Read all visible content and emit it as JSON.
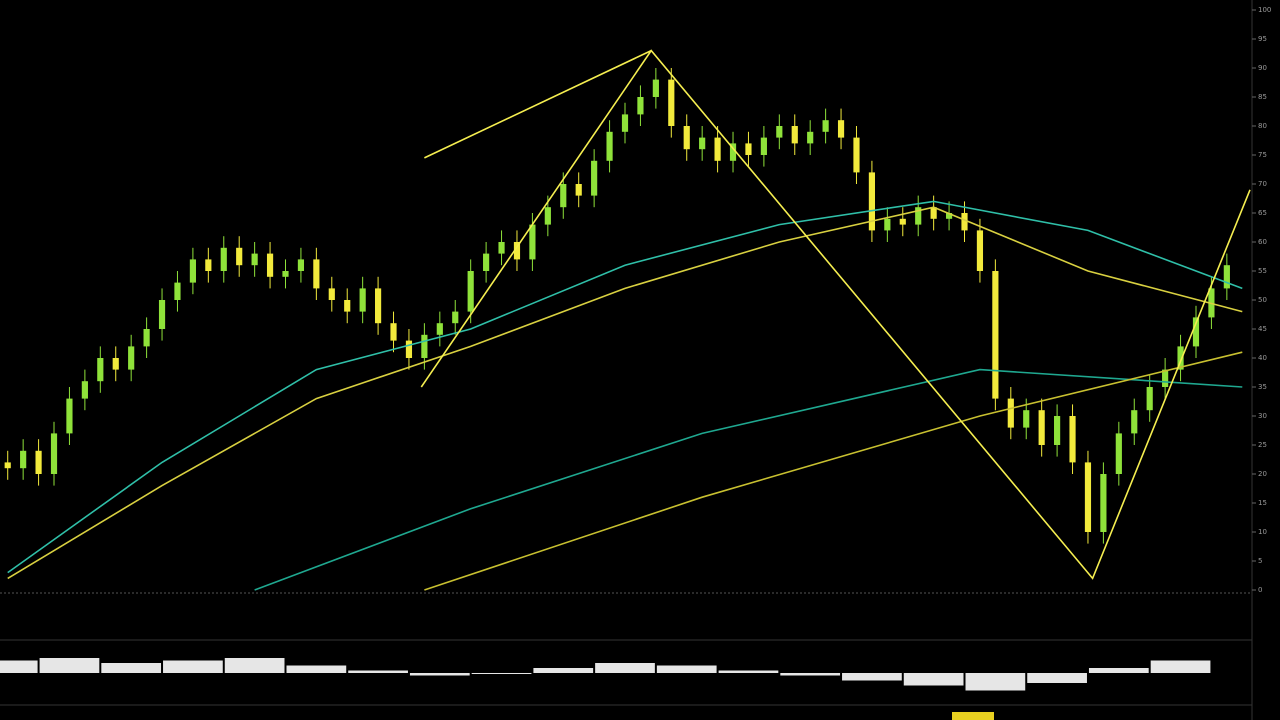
{
  "chart_data": [
    {
      "type": "candlestick",
      "x": [
        0,
        1,
        2,
        3,
        4,
        5,
        6,
        7,
        8,
        9,
        10,
        11,
        12,
        13,
        14,
        15,
        16,
        17,
        18,
        19,
        20,
        21,
        22,
        23,
        24,
        25,
        26,
        27,
        28,
        29,
        30,
        31,
        32,
        33,
        34,
        35,
        36,
        37,
        38,
        39,
        40,
        41,
        42,
        43,
        44,
        45,
        46,
        47,
        48,
        49,
        50,
        51,
        52,
        53,
        54,
        55,
        56,
        57,
        58,
        59,
        60,
        61,
        62,
        63,
        64,
        65,
        66,
        67,
        68,
        69,
        70,
        71,
        72,
        73,
        74,
        75,
        76,
        77,
        78,
        79
      ],
      "open": [
        22,
        21,
        24,
        20,
        27,
        33,
        36,
        40,
        38,
        42,
        45,
        50,
        53,
        57,
        55,
        59,
        56,
        58,
        54,
        55,
        57,
        52,
        50,
        48,
        52,
        46,
        43,
        40,
        44,
        46,
        48,
        55,
        58,
        60,
        57,
        63,
        66,
        70,
        68,
        74,
        79,
        82,
        85,
        88,
        80,
        76,
        78,
        74,
        77,
        75,
        78,
        80,
        77,
        79,
        81,
        78,
        72,
        62,
        64,
        63,
        66,
        64,
        65,
        62,
        55,
        33,
        28,
        31,
        25,
        30,
        22,
        10,
        20,
        27,
        31,
        35,
        38,
        42,
        47,
        52
      ],
      "high": [
        24,
        26,
        26,
        29,
        35,
        38,
        42,
        42,
        44,
        47,
        52,
        55,
        59,
        59,
        61,
        61,
        60,
        60,
        57,
        59,
        59,
        54,
        52,
        54,
        54,
        48,
        45,
        46,
        48,
        50,
        57,
        60,
        62,
        62,
        65,
        68,
        72,
        72,
        76,
        81,
        84,
        87,
        90,
        90,
        82,
        80,
        80,
        79,
        79,
        80,
        82,
        82,
        81,
        83,
        83,
        80,
        74,
        66,
        66,
        68,
        68,
        67,
        67,
        64,
        57,
        35,
        33,
        33,
        32,
        32,
        24,
        22,
        29,
        33,
        37,
        40,
        44,
        49,
        54,
        58
      ],
      "low": [
        19,
        19,
        18,
        18,
        25,
        31,
        34,
        36,
        36,
        40,
        43,
        48,
        51,
        53,
        53,
        54,
        54,
        52,
        52,
        53,
        50,
        48,
        46,
        46,
        44,
        41,
        38,
        38,
        42,
        44,
        46,
        53,
        56,
        55,
        55,
        61,
        64,
        66,
        66,
        72,
        77,
        80,
        83,
        78,
        74,
        74,
        72,
        72,
        73,
        73,
        76,
        75,
        75,
        77,
        76,
        70,
        60,
        60,
        61,
        61,
        62,
        62,
        60,
        53,
        31,
        26,
        26,
        23,
        23,
        20,
        8,
        8,
        18,
        25,
        29,
        33,
        36,
        40,
        45,
        50
      ],
      "close": [
        21,
        24,
        20,
        27,
        33,
        36,
        40,
        38,
        42,
        45,
        50,
        53,
        57,
        55,
        59,
        56,
        58,
        54,
        55,
        57,
        52,
        50,
        48,
        52,
        46,
        43,
        40,
        44,
        46,
        48,
        55,
        58,
        60,
        57,
        63,
        66,
        70,
        68,
        74,
        79,
        82,
        85,
        88,
        80,
        76,
        78,
        74,
        77,
        75,
        78,
        80,
        77,
        79,
        81,
        78,
        72,
        62,
        64,
        63,
        66,
        64,
        65,
        62,
        55,
        33,
        28,
        31,
        25,
        30,
        22,
        10,
        20,
        27,
        31,
        35,
        38,
        42,
        47,
        52,
        56
      ],
      "up_color": "#8fe23a",
      "down_color": "#f2ea3c",
      "xlim": [
        -0.5,
        80.5
      ],
      "ylim": [
        0,
        100
      ],
      "yticks": [
        0,
        5,
        10,
        15,
        20,
        25,
        30,
        35,
        40,
        45,
        50,
        55,
        60,
        65,
        70,
        75,
        80,
        85,
        90,
        95,
        100
      ],
      "grid": false,
      "series": [
        {
          "color": "#2fbfa8",
          "x": [
            0,
            10,
            20,
            30,
            40,
            50,
            60,
            70,
            80
          ],
          "values": [
            3,
            22,
            38,
            45,
            56,
            63,
            67,
            62,
            52
          ]
        },
        {
          "color": "#d8d040",
          "x": [
            0,
            10,
            20,
            30,
            40,
            50,
            60,
            70,
            80
          ],
          "values": [
            2,
            18,
            33,
            42,
            52,
            60,
            66,
            55,
            48
          ]
        },
        {
          "color": "#1fa890",
          "x": [
            16,
            30,
            45,
            63,
            80
          ],
          "values": [
            0,
            14,
            27,
            38,
            35
          ]
        },
        {
          "color": "#c8c030",
          "x": [
            27,
            45,
            63,
            80
          ],
          "values": [
            0,
            16,
            30,
            41
          ]
        },
        {
          "color": "#f5ee50",
          "x": [
            26.8,
            41.7,
            70.3,
            80.5
          ],
          "values": [
            35,
            93,
            2,
            69
          ]
        },
        {
          "color": "#f5ee50",
          "x": [
            27,
            41.7
          ],
          "values": [
            74.5,
            93
          ]
        }
      ]
    },
    {
      "type": "bar",
      "x": [
        0,
        4,
        8,
        12,
        16,
        20,
        24,
        28,
        32,
        36,
        40,
        44,
        48,
        52,
        56,
        60,
        64,
        68,
        72,
        76
      ],
      "values": [
        0.5,
        0.6,
        0.4,
        0.5,
        0.6,
        0.3,
        0.1,
        -0.1,
        0.0,
        0.2,
        0.4,
        0.3,
        0.1,
        -0.1,
        -0.3,
        -0.5,
        -0.7,
        -0.4,
        0.2,
        0.5
      ],
      "color": "#e6e6e6",
      "xlim": [
        -0.5,
        80.5
      ],
      "ylim": [
        -1,
        1
      ]
    }
  ]
}
